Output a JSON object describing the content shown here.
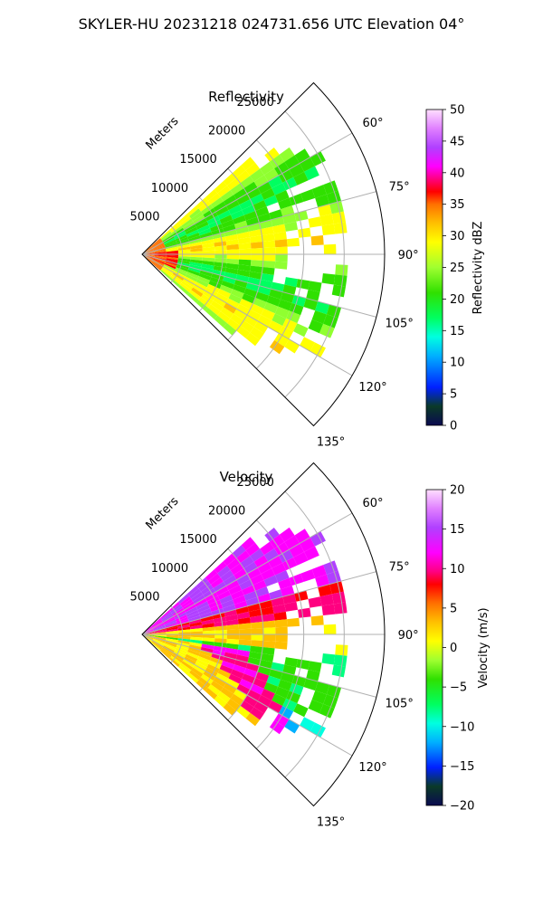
{
  "suptitle": "SKYLER-HU  20231218  024731.656 UTC Elevation 04°",
  "chart_data": [
    {
      "type": "heatmap",
      "projection": "polar-sector",
      "title": "Reflectivity",
      "r_axis_label": "Meters",
      "r_ticks": [
        "5000",
        "10000",
        "15000",
        "20000",
        "25000"
      ],
      "theta_ticks": [
        "60°",
        "75°",
        "90°",
        "105°",
        "120°",
        "135°"
      ],
      "theta_range_deg": [
        45,
        135
      ],
      "r_range_m": [
        0,
        30000
      ],
      "colorbar": {
        "label": "Reflectivity dBZ",
        "range": [
          0,
          50
        ],
        "ticks": [
          "0",
          "5",
          "10",
          "15",
          "20",
          "25",
          "30",
          "35",
          "40",
          "45",
          "50"
        ]
      },
      "field_description": "dominant values 20-30 dBZ; near-radar core ~35-40 dBZ"
    },
    {
      "type": "heatmap",
      "projection": "polar-sector",
      "title": "Velocity",
      "r_axis_label": "Meters",
      "r_ticks": [
        "5000",
        "10000",
        "15000",
        "20000",
        "25000"
      ],
      "theta_ticks": [
        "60°",
        "75°",
        "90°",
        "105°",
        "120°",
        "135°"
      ],
      "theta_range_deg": [
        45,
        135
      ],
      "r_range_m": [
        0,
        30000
      ],
      "colorbar": {
        "label": "Velocity (m/s)",
        "range": [
          -20,
          20
        ],
        "ticks": [
          "−20",
          "−15",
          "−10",
          "−5",
          "0",
          "5",
          "10",
          "15",
          "20"
        ]
      },
      "field_description": "~+15 m/s north of 75°, ~0 to +5 m/s near 90°, -5 to -10 m/s beyond 100°, +10 m/s arc near 105-115° at close range"
    }
  ]
}
